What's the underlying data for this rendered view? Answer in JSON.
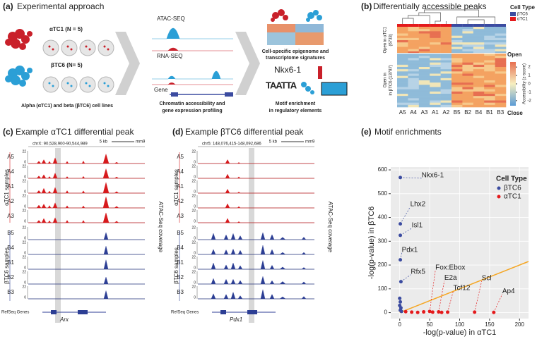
{
  "panel_a": {
    "label": "(a)",
    "title": "Experimental approach",
    "alpha_label": "αTC1 (N = 5)",
    "beta_label": "βTC6 (N= 5)",
    "cell_lines": "Alpha (αTC1) and beta (βTC6) cell lines",
    "tracks": [
      "ATAC-SEQ",
      "RNA-SEQ",
      "Gene"
    ],
    "profiling": [
      "Chromatin accessibility and",
      "gene expression profiling"
    ],
    "signatures": [
      "Cell-specific epigenome and",
      "transcriptome signatures"
    ],
    "motif": "Nkx6-1",
    "logo": "TAATTA",
    "enrichment": [
      "Motif enrichment",
      "in regulatory elements"
    ]
  },
  "panel_b": {
    "label": "(b)",
    "title": "Differentially accessible peaks",
    "legend_title": "Cell Type",
    "legend": [
      {
        "name": "βTC6",
        "color": "#3b4ba0"
      },
      {
        "name": "αTC1",
        "color": "#e41a1c"
      }
    ],
    "row_labels": [
      [
        "Open in αTC1",
        "(6733)"
      ],
      [
        "Open in",
        "in βTC6 (13787)"
      ]
    ],
    "columns": [
      "A5",
      "A4",
      "A3",
      "A1",
      "A2",
      "B5",
      "B2",
      "B4",
      "B1",
      "B3"
    ],
    "colorbar_open": "Open",
    "colorbar_close": "Close",
    "colorbar_title": "Accessibility (z-score)",
    "colorbar_lim": [
      -2.6,
      2.6
    ],
    "colorbar_ticks": [
      2,
      1,
      0,
      -1,
      -2
    ]
  },
  "panel_c": {
    "label": "(c)",
    "title": "Example αTC1 differential peak",
    "coords": "chrX: 90,528,900-90,544,989",
    "scale": "5 kb",
    "genome": "mm9",
    "group_labels": [
      "αTC1 samples",
      "βTC6 samples"
    ],
    "samples": [
      "A5",
      "A4",
      "A1",
      "A2",
      "A3",
      "B5",
      "B4",
      "B1",
      "B2",
      "B3"
    ],
    "track_ticks": [
      22,
      0
    ],
    "coverage": "ATAC-Seq coverage",
    "refseq": "RefSeq Genes",
    "gene": "Arx"
  },
  "panel_d": {
    "label": "(d)",
    "title": "Example βTC6 differential peak",
    "coords": "chr5: 148,076,415-148,092,686",
    "scale": "5 kb",
    "genome": "mm9",
    "group_labels": [
      "αTC1 samples",
      "βTC6 samples"
    ],
    "samples": [
      "A5",
      "A4",
      "A1",
      "A2",
      "A3",
      "B5",
      "B4",
      "B1",
      "B2",
      "B3"
    ],
    "track_ticks": [
      22,
      0
    ],
    "coverage": "ATAC-Seq coverage",
    "refseq": "RefSeq Genes",
    "gene": "Pdx1"
  },
  "chart_data": {
    "type": "scatter",
    "label": "(e)",
    "title": "Motif enrichments",
    "x_label": "-log(p-value) in αTC1",
    "y_label": "-log(p-value) in βTC6",
    "xlim": [
      -15,
      215
    ],
    "xticks": [
      0,
      50,
      100,
      150,
      200
    ],
    "ylim": [
      -25,
      612
    ],
    "yticks": [
      0,
      100,
      200,
      300,
      400,
      500,
      600
    ],
    "grid": true,
    "diagonal_color": "#f5a623",
    "legend_title": "Cell Type",
    "legend": "top-right",
    "series": [
      {
        "name": "βTC6",
        "color": "#3b4ba0",
        "x": [
          1,
          1,
          1,
          1,
          2,
          0,
          1,
          0,
          2,
          1,
          3
        ],
        "values": [
          568,
          373,
          325,
          222,
          130,
          60,
          45,
          30,
          20,
          10,
          5
        ],
        "point_labels": [
          "Nkx6-1",
          "Lhx2",
          "Isl1",
          "Pdx1",
          "Rfx5",
          null,
          null,
          null,
          null,
          null,
          null
        ]
      },
      {
        "name": "αTC1",
        "color": "#e41a1c",
        "x": [
          50,
          65,
          80,
          125,
          157,
          20,
          30,
          40,
          10,
          55,
          70
        ],
        "values": [
          5,
          3,
          2,
          2,
          1,
          2,
          1,
          3,
          4,
          2,
          1
        ],
        "point_labels": [
          "Fox:Ebox",
          "E2a",
          "Tcf12",
          "Scl",
          "Ap4",
          null,
          null,
          null,
          null,
          null,
          null
        ]
      }
    ]
  }
}
